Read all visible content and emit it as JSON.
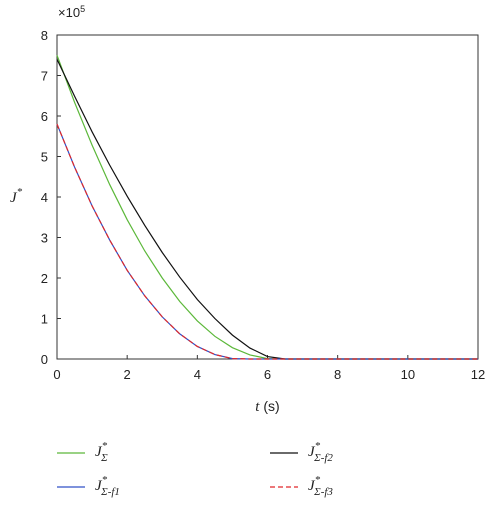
{
  "chart_data": {
    "type": "line",
    "x_label": "t (s)",
    "y_label": "J*",
    "y_multiplier": "×10",
    "y_multiplier_exponent": "5",
    "x": [
      0,
      0.5,
      1,
      1.5,
      2,
      2.5,
      3,
      3.5,
      4,
      4.5,
      5,
      5.5,
      6,
      6.5,
      7,
      8,
      9,
      10,
      11,
      12
    ],
    "series": [
      {
        "name": "J*Σ",
        "color": "#5cb83a",
        "dash": false,
        "values": [
          7.5,
          6.34,
          5.28,
          4.31,
          3.44,
          2.67,
          2.0,
          1.42,
          0.94,
          0.56,
          0.28,
          0.1,
          0.01,
          0,
          0,
          0,
          0,
          0,
          0,
          0
        ]
      },
      {
        "name": "J*Σ-f2",
        "color": "#111111",
        "dash": false,
        "values": [
          7.4,
          6.49,
          5.61,
          4.79,
          4.02,
          3.3,
          2.63,
          2.02,
          1.47,
          1.0,
          0.59,
          0.27,
          0.06,
          0,
          0,
          0,
          0,
          0,
          0,
          0
        ]
      },
      {
        "name": "J*Σ-f1",
        "color": "#3050c8",
        "dash": false,
        "values": [
          5.8,
          4.74,
          3.78,
          2.94,
          2.19,
          1.56,
          1.04,
          0.62,
          0.31,
          0.11,
          0.01,
          0,
          0,
          0,
          0,
          0,
          0,
          0,
          0,
          0
        ]
      },
      {
        "name": "J*Σ-f3",
        "color": "#e0282a",
        "dash": true,
        "values": [
          5.8,
          4.74,
          3.78,
          2.94,
          2.19,
          1.56,
          1.04,
          0.62,
          0.31,
          0.11,
          0.01,
          0,
          0,
          0,
          0,
          0,
          0,
          0,
          0,
          0
        ]
      }
    ],
    "xlim": [
      0,
      12
    ],
    "xticks": [
      0,
      2,
      4,
      6,
      8,
      10,
      12
    ],
    "ylim": [
      0,
      8
    ],
    "yticks": [
      0,
      1,
      2,
      3,
      4,
      5,
      6,
      7,
      8
    ],
    "grid": false,
    "legend": "bottom"
  }
}
